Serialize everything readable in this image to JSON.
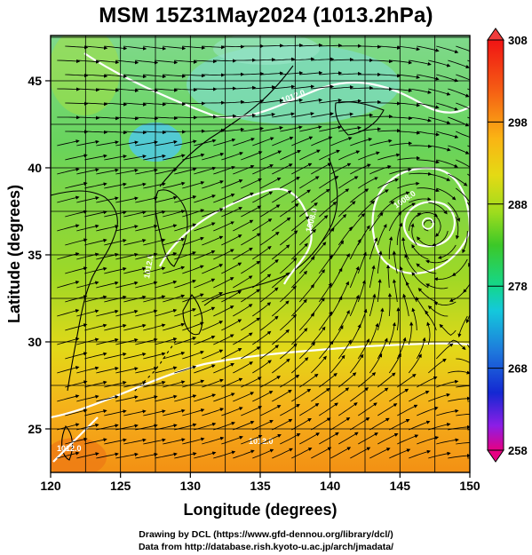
{
  "title": "MSM 15Z31May2024 (1013.2hPa)",
  "map": {
    "x_axis": {
      "label": "Longitude (degrees)",
      "ticks": [
        "120",
        "125",
        "130",
        "135",
        "140",
        "145",
        "150"
      ],
      "range": [
        120,
        150
      ]
    },
    "y_axis": {
      "label": "Latitude (degrees)",
      "ticks": [
        "25",
        "30",
        "35",
        "40",
        "45"
      ],
      "range": [
        22.5,
        47.6
      ]
    },
    "gridlines": true,
    "contour_labels": [
      "1012.0",
      "1008.0",
      "1008.0",
      "1012.0",
      "1012.0",
      "1012.0"
    ],
    "features": [
      "temperature shading",
      "streamlines",
      "isobars",
      "coastlines"
    ],
    "low_pressure_center": {
      "lon": 147.0,
      "lat": 36.8
    }
  },
  "colorbar": {
    "ticks": [
      "308",
      "298",
      "288",
      "278",
      "268",
      "258"
    ],
    "range": [
      258,
      308
    ],
    "colors": [
      "#e60082",
      "#8c1ee6",
      "#1428d2",
      "#1e78dc",
      "#14c8dc",
      "#14d796",
      "#28c828",
      "#8cdc1e",
      "#d2dc14",
      "#f0d214",
      "#fab414",
      "#fa7814",
      "#f03c14",
      "#f01414"
    ]
  },
  "footer": {
    "line1": "Drawing by DCL (https://www.gfd-dennou.org/library/dcl/)",
    "line2": "Data from http://database.rish.kyoto-u.ac.jp/arch/jmadata/"
  }
}
